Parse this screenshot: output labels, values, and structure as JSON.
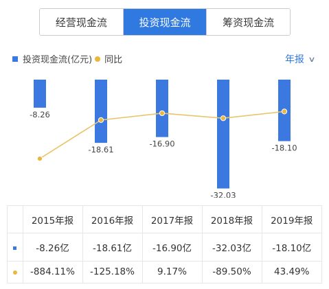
{
  "tabs": [
    {
      "label": "经营现金流",
      "active": false
    },
    {
      "label": "投资现金流",
      "active": true
    },
    {
      "label": "筹资现金流",
      "active": false
    }
  ],
  "legend": {
    "bar_label": "投资现金流(亿元)",
    "line_label": "同比"
  },
  "period_selector": {
    "label": "年报",
    "icon": "chevron-down-icon"
  },
  "colors": {
    "accent": "#2f79e0",
    "bar": "#3b78e0",
    "line": "#e9c56a",
    "dot": "#e9b63f",
    "positive": "#d64545",
    "negative": "#2aa67a"
  },
  "chart_data": {
    "type": "bar",
    "categories": [
      "2015年报",
      "2016年报",
      "2017年报",
      "2018年报",
      "2019年报"
    ],
    "series": [
      {
        "name": "投资现金流(亿元)",
        "type": "bar",
        "values": [
          -8.26,
          -18.61,
          -16.9,
          -32.03,
          -18.1
        ],
        "labels": [
          "-8.26",
          "-18.61",
          "-16.90",
          "-32.03",
          "-18.10"
        ]
      },
      {
        "name": "同比",
        "type": "line",
        "values": [
          -884.11,
          -125.18,
          9.17,
          -89.5,
          43.49
        ]
      }
    ],
    "ylim": [
      -35,
      0
    ],
    "grid": false,
    "legend_position": "top-left"
  },
  "table": {
    "header": [
      "2015年报",
      "2016年报",
      "2017年报",
      "2018年报",
      "2019年报"
    ],
    "rows": [
      {
        "marker": "bar",
        "cells": [
          "-8.26亿",
          "-18.61亿",
          "-16.90亿",
          "-32.03亿",
          "-18.10亿"
        ]
      },
      {
        "marker": "line",
        "cells": [
          "-884.11%",
          "-125.18%",
          "9.17%",
          "-89.50%",
          "43.49%"
        ]
      }
    ]
  }
}
